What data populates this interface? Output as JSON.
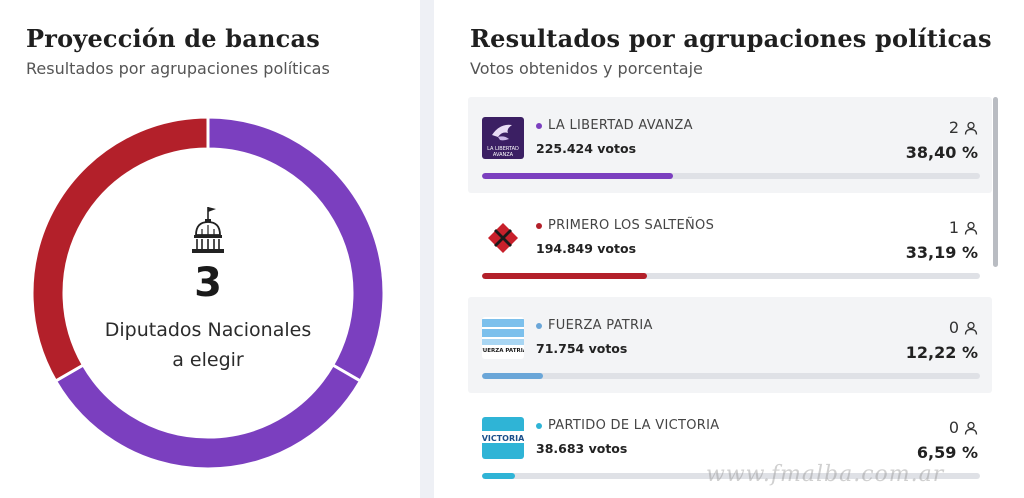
{
  "colors": {
    "libertad": "#7b3fbf",
    "primero": "#b3202a",
    "fuerza": "#6aa6d8",
    "victoria": "#2fb4d6",
    "track": "#dfe1e6"
  },
  "projection": {
    "title": "Proyección de bancas",
    "subtitle": "Resultados por agrupaciones políticas",
    "total_seats": "3",
    "caption_line1": "Diputados Nacionales",
    "caption_line2": "a elegir",
    "icon": "capitol-icon"
  },
  "results": {
    "title": "Resultados por agrupaciones políticas",
    "subtitle": "Votos obtenidos y porcentaje",
    "seat_icon": "person-icon",
    "parties": [
      {
        "name": "LA LIBERTAD AVANZA",
        "votes": "225.424 votos",
        "percent": "38,40 %",
        "seats": "2",
        "share": 38.4,
        "color": "#7b3fbf",
        "logo": "libertad-avanza-logo",
        "logo_text": "LA LIBERTAD AVANZA"
      },
      {
        "name": "PRIMERO LOS SALTEÑOS",
        "votes": "194.849 votos",
        "percent": "33,19 %",
        "seats": "1",
        "share": 33.19,
        "color": "#b3202a",
        "logo": "primero-saltenos-logo"
      },
      {
        "name": "FUERZA PATRIA",
        "votes": "71.754 votos",
        "percent": "12,22 %",
        "seats": "0",
        "share": 12.22,
        "color": "#6aa6d8",
        "logo": "fuerza-patria-logo",
        "logo_text": "FUERZA PATRIA"
      },
      {
        "name": "PARTIDO DE LA VICTORIA",
        "votes": "38.683 votos",
        "percent": "6,59 %",
        "seats": "0",
        "share": 6.59,
        "color": "#2fb4d6",
        "logo": "victoria-logo",
        "logo_text": "VICTORIA"
      }
    ]
  },
  "watermark": "www.fmalba.com.ar"
}
